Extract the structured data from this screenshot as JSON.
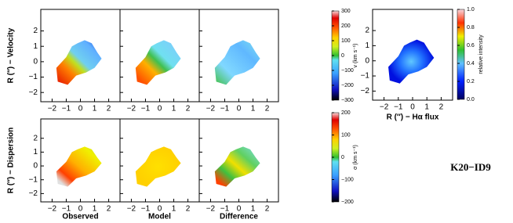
{
  "rows": [
    {
      "ylabel": "R (″) − Velocity"
    },
    {
      "ylabel": "R (″) − Dispersion"
    }
  ],
  "columns": [
    "Observed",
    "Model",
    "Difference"
  ],
  "xlim": [
    -2.8,
    2.8
  ],
  "ylim": [
    -2.6,
    3.4
  ],
  "xticks": [
    {
      "value": -2,
      "label": "−2"
    },
    {
      "value": -1,
      "label": "−1"
    },
    0,
    1,
    2
  ],
  "yticks": [
    {
      "value": -2,
      "label": "−2"
    },
    {
      "value": -1,
      "label": "−1"
    },
    0,
    1,
    2
  ],
  "colorbars": [
    {
      "label": "v (km s⁻¹)",
      "lim": [
        -300,
        300
      ],
      "ticks": [
        {
          "value": -300,
          "label": "−300"
        },
        {
          "value": -200,
          "label": "−200"
        },
        {
          "value": -100,
          "label": "−100"
        },
        0,
        100,
        200,
        300
      ]
    },
    {
      "label": "σ (km s⁻¹)",
      "lim": [
        -200,
        200
      ],
      "ticks": [
        {
          "value": -200,
          "label": "−200"
        },
        {
          "value": -100,
          "label": "−100"
        },
        0,
        100,
        200
      ]
    },
    {
      "label": "relative intensity",
      "lim": [
        0,
        1
      ],
      "ticks": [
        {
          "value": 0,
          "label": "0.0"
        },
        {
          "value": 0.2,
          "label": "0.2"
        },
        {
          "value": 0.4,
          "label": "0.4"
        },
        {
          "value": 0.6,
          "label": "0.6"
        },
        {
          "value": 0.8,
          "label": "0.8"
        },
        {
          "value": 1,
          "label": "1.0"
        }
      ]
    }
  ],
  "flux_panel": {
    "xlabel": "R (″) − Hα flux"
  },
  "object": "K20−ID9"
}
